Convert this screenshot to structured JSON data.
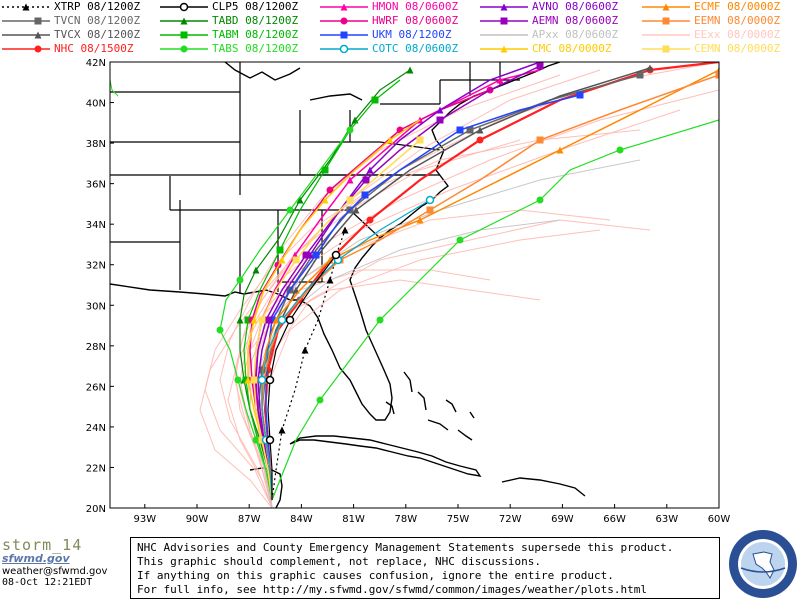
{
  "legend": [
    {
      "label": "XTRP 08/1200Z",
      "color": "#000000",
      "marker": "tri",
      "dash": true
    },
    {
      "label": "TVCN 08/1200Z",
      "color": "#666666",
      "marker": "sq"
    },
    {
      "label": "TVCX 08/1200Z",
      "color": "#555555",
      "marker": "tri"
    },
    {
      "label": "NHC 08/1500Z",
      "color": "#ff2020",
      "marker": "dot"
    },
    {
      "label": "CLP5 08/1200Z",
      "color": "#000000",
      "marker": "circle"
    },
    {
      "label": "TABD 08/1200Z",
      "color": "#008800",
      "marker": "tri"
    },
    {
      "label": "TABM 08/1200Z",
      "color": "#00bb00",
      "marker": "sq"
    },
    {
      "label": "TABS 08/1200Z",
      "color": "#22dd22",
      "marker": "dot"
    },
    {
      "label": "HMON 08/0600Z",
      "color": "#ff00aa",
      "marker": "tri"
    },
    {
      "label": "HWRF 08/0600Z",
      "color": "#ee0088",
      "marker": "dot"
    },
    {
      "label": "UKM 08/1200Z",
      "color": "#2244ff",
      "marker": "sq"
    },
    {
      "label": "COTC 08/0600Z",
      "color": "#00aacc",
      "marker": "circle"
    },
    {
      "label": "AVNO 08/0600Z",
      "color": "#8800cc",
      "marker": "tri"
    },
    {
      "label": "AEMN 08/0600Z",
      "color": "#9900bb",
      "marker": "sq"
    },
    {
      "label": "APxx 08/0600Z",
      "color": "#c0c0c0",
      "marker": "none"
    },
    {
      "label": "CMC 08/0000Z",
      "color": "#ffcc00",
      "marker": "tri"
    },
    {
      "label": "ECMF 08/0000Z",
      "color": "#ff8800",
      "marker": "tri"
    },
    {
      "label": "EEMN 08/0000Z",
      "color": "#ff8833",
      "marker": "sq"
    },
    {
      "label": "EExx 08/0000Z",
      "color": "#ffc8c0",
      "marker": "none"
    },
    {
      "label": "CEMN 08/0000Z",
      "color": "#ffdd55",
      "marker": "sq"
    }
  ],
  "map": {
    "lon_range": [
      -95,
      -60
    ],
    "lat_range": [
      20,
      42
    ],
    "lat_labels": [
      "42N",
      "40N",
      "38N",
      "36N",
      "34N",
      "32N",
      "30N",
      "28N",
      "26N",
      "24N",
      "22N",
      "20N"
    ],
    "lon_labels": [
      "93W",
      "90W",
      "87W",
      "84W",
      "81W",
      "78W",
      "75W",
      "72W",
      "69W",
      "66W",
      "63W",
      "60W"
    ]
  },
  "disclaimer": [
    "NHC Advisories and County Emergency Management Statements supersede this product.",
    "This graphic should complement, not replace, NHC discussions.",
    "If anything on this graphic causes confusion, ignore the entire product.",
    "For full info, see  http://my.sfwmd.gov/sfwmd/common/images/weather/plots.html"
  ],
  "brand": {
    "storm": "storm_14",
    "agency": "sfwmd.gov",
    "email": "weather@sfwmd.gov",
    "timestamp": "08-Oct 12:21EDT"
  }
}
